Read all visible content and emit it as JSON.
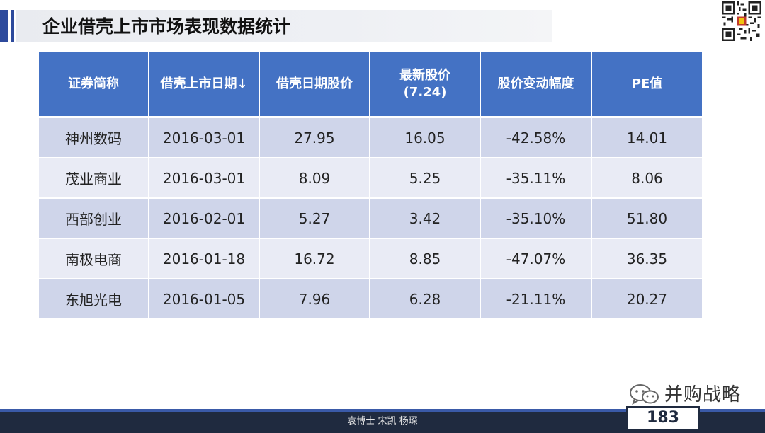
{
  "header": {
    "title": "企业借壳上市市场表现数据统计"
  },
  "table": {
    "columns": [
      "证券简称",
      "借壳上市日期↓",
      "借壳日期股价",
      "最新股价\n(7.24)",
      "股价变动幅度",
      "PE值"
    ],
    "rows": [
      [
        "神州数码",
        "2016-03-01",
        "27.95",
        "16.05",
        "-42.58%",
        "14.01"
      ],
      [
        "茂业商业",
        "2016-03-01",
        "8.09",
        "5.25",
        "-35.11%",
        "8.06"
      ],
      [
        "西部创业",
        "2016-02-01",
        "5.27",
        "3.42",
        "-35.10%",
        "51.80"
      ],
      [
        "南极电商",
        "2016-01-18",
        "16.72",
        "8.85",
        "-47.07%",
        "36.35"
      ],
      [
        "东旭光电",
        "2016-01-05",
        "7.96",
        "6.28",
        "-21.11%",
        "20.27"
      ]
    ]
  },
  "watermark": {
    "text": "并购战略",
    "icon": "wechat-icon"
  },
  "footer": {
    "authors": "袁博士 宋凯 杨琛",
    "page_number": "183"
  },
  "colors": {
    "header_blue": "#4472c4",
    "row_dark": "#cfd5ea",
    "row_light": "#e9ebf5",
    "footer_navy": "#1f2a3f"
  }
}
